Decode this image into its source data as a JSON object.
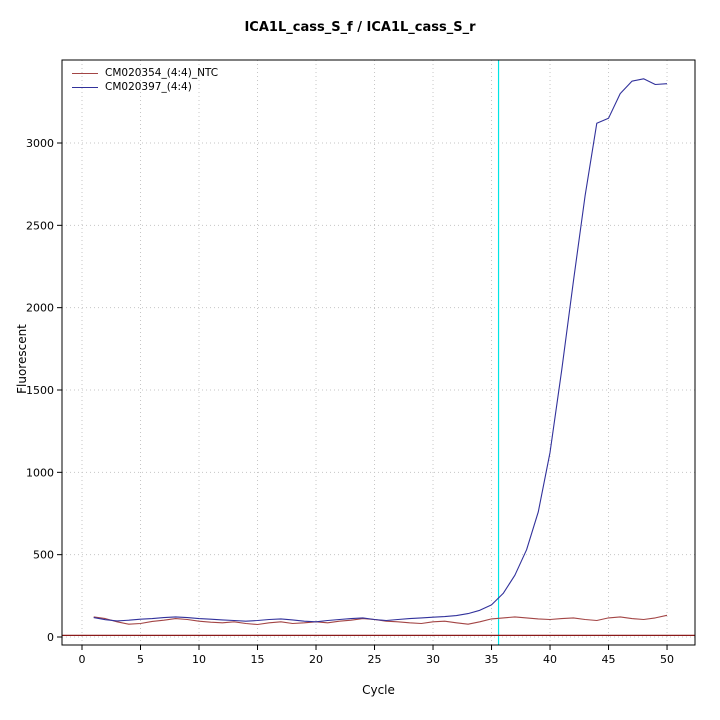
{
  "chart_data": {
    "type": "line",
    "title": "ICA1L_cass_S_f / ICA1L_cass_S_r",
    "xlabel": "Cycle",
    "ylabel": "Fluorescent",
    "xlim": [
      -1.71,
      52.39
    ],
    "ylim": [
      -48.6,
      3504
    ],
    "xticks": [
      0,
      5,
      10,
      15,
      20,
      25,
      30,
      35,
      40,
      45,
      50
    ],
    "yticks": [
      0,
      500,
      1000,
      1500,
      2000,
      2500,
      3000
    ],
    "grid": true,
    "legend_position": "top-left",
    "threshold_line": {
      "y": 10,
      "color": "#8b1a1a"
    },
    "vertical_line": {
      "x": 35.6,
      "color": "#00e5e5"
    },
    "x": [
      1,
      2,
      3,
      4,
      5,
      6,
      7,
      8,
      9,
      10,
      11,
      12,
      13,
      14,
      15,
      16,
      17,
      18,
      19,
      20,
      21,
      22,
      23,
      24,
      25,
      26,
      27,
      28,
      29,
      30,
      31,
      32,
      33,
      34,
      35,
      36,
      37,
      38,
      39,
      40,
      41,
      42,
      43,
      44,
      45,
      46,
      47,
      48,
      49,
      50
    ],
    "series": [
      {
        "name": "CM020354_(4:4)_NTC",
        "color": "#a34545",
        "values": [
          122,
          112,
          92,
          78,
          82,
          95,
          102,
          112,
          106,
          96,
          90,
          86,
          92,
          82,
          76,
          86,
          92,
          82,
          86,
          92,
          86,
          96,
          102,
          112,
          106,
          96,
          92,
          86,
          82,
          92,
          96,
          86,
          78,
          92,
          110,
          116,
          122,
          116,
          110,
          106,
          112,
          116,
          106,
          100,
          116,
          122,
          112,
          106,
          116,
          132
        ]
      },
      {
        "name": "CM020397_(4:4)",
        "color": "#31319b",
        "values": [
          118,
          105,
          98,
          102,
          108,
          112,
          118,
          122,
          118,
          112,
          108,
          104,
          100,
          96,
          100,
          106,
          110,
          104,
          96,
          92,
          100,
          106,
          112,
          116,
          106,
          100,
          106,
          112,
          116,
          120,
          124,
          130,
          142,
          162,
          195,
          265,
          375,
          530,
          760,
          1120,
          1620,
          2160,
          2680,
          3120,
          3150,
          3300,
          3375,
          3390,
          3355,
          3360
        ]
      }
    ]
  }
}
